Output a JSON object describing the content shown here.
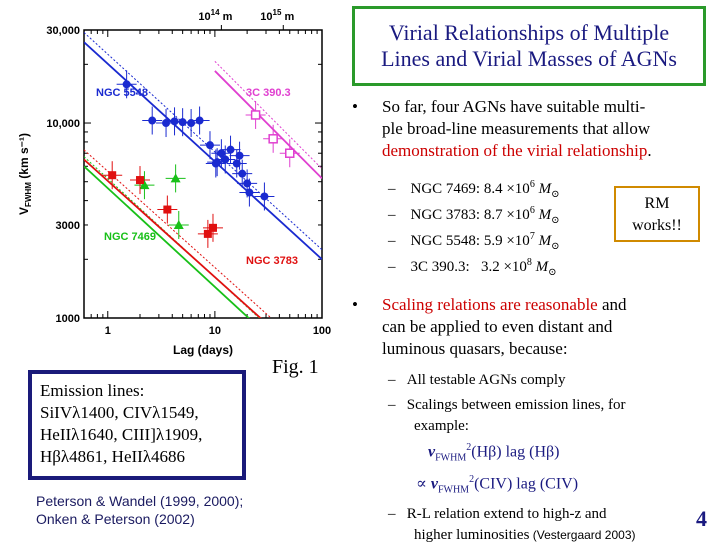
{
  "slide": {
    "title_line1": "Virial Relationships of Multiple",
    "title_line2": "Lines and Virial Masses of AGNs",
    "fig_label": "Fig. 1",
    "page_number": "4",
    "citation_line1": "Peterson & Wandel (1999, 2000);",
    "citation_line2": "Onken & Peterson (2002)",
    "emission_box": {
      "line1": "Emission lines:",
      "line2": "SiIVλ1400, CIVλ1549,",
      "line3": "HeIIλ1640, CIII]λ1909,",
      "line4": "Hβλ4861, HeIIλ4686"
    },
    "bullet1": {
      "marker": "•",
      "line1": "So far, four AGNs have suitable multi-",
      "line2": "ple broad-line measurements that allow",
      "line3_red": "demonstration of the virial relationship",
      "line3_end": ".",
      "items": [
        {
          "dash": "–",
          "name": "NGC 7469:",
          "value": "8.4 ×10",
          "exp": "6",
          "unit": "M"
        },
        {
          "dash": "–",
          "name": "NGC 3783:",
          "value": "8.7 ×10",
          "exp": "6",
          "unit": "M"
        },
        {
          "dash": "–",
          "name": "NGC 5548:",
          "value": "5.9 ×10",
          "exp": "7",
          "unit": "M"
        },
        {
          "dash": "–",
          "name": "3C 390.3:",
          "value": "3.2 ×10",
          "exp": "8",
          "unit": "M"
        }
      ],
      "sun_symbol": "⊙"
    },
    "rm_box": {
      "line1": "RM",
      "line2": "works!!"
    },
    "bullet2": {
      "marker": "•",
      "line1_red": "Scaling relations are reasonable",
      "line1_end": " and",
      "line2": "can be applied to even distant and",
      "line3": "luminous quasars, because:",
      "sub1": "All  testable AGNs comply",
      "sub2_line1": "Scalings between emission lines, for",
      "sub2_line2": "example:",
      "eq1_v": "v",
      "eq1_sub": "FWHM",
      "eq1_sup": "2",
      "eq1_rest": "(Hβ) lag (Hβ)",
      "eq2_prefix": "∝ ",
      "eq2_v": "v",
      "eq2_sub": "FWHM",
      "eq2_sup": "2",
      "eq2_rest": "(CIV) lag (CIV)",
      "sub3_line1": "R-L relation extend to high-z and",
      "sub3_line2": "higher luminosities",
      "sub3_cite": " (Vestergaard 2003)"
    }
  },
  "chart_data": {
    "type": "scatter",
    "xlabel": "Lag (days)",
    "ylabel": "V",
    "ylabel_sub": "FWHM",
    "ylabel_unit": " (km s⁻¹)",
    "x_scale": "log",
    "y_scale": "log",
    "xlim": [
      0.6,
      100
    ],
    "ylim": [
      1000,
      30000
    ],
    "x_ticks": [
      1,
      10,
      100
    ],
    "x_tick_labels": [
      "1",
      "10",
      "100"
    ],
    "y_ticks": [
      1000,
      3000,
      10000,
      30000
    ],
    "y_tick_labels": [
      "1000",
      "3000",
      "10,000",
      "30,000"
    ],
    "top_axis_ticks": [
      {
        "lag": 11.5,
        "label": "10",
        "sup": "14",
        "unit": " m"
      },
      {
        "lag": 43.5,
        "label": "10",
        "sup": "15",
        "unit": " m"
      }
    ],
    "series": [
      {
        "name": "NGC 5548",
        "color": "#1a2ad0",
        "marker": "circle-filled",
        "points": [
          {
            "x": 1.5,
            "y": 15800
          },
          {
            "x": 2.6,
            "y": 10300
          },
          {
            "x": 3.5,
            "y": 10000
          },
          {
            "x": 4.2,
            "y": 10200
          },
          {
            "x": 5.0,
            "y": 10100
          },
          {
            "x": 6.0,
            "y": 10000
          },
          {
            "x": 7.2,
            "y": 10300
          },
          {
            "x": 9.0,
            "y": 7700
          },
          {
            "x": 10.5,
            "y": 6300
          },
          {
            "x": 12.5,
            "y": 6500
          },
          {
            "x": 14,
            "y": 7300
          },
          {
            "x": 16,
            "y": 6200
          },
          {
            "x": 17,
            "y": 6800
          },
          {
            "x": 18,
            "y": 5500
          },
          {
            "x": 20,
            "y": 4900
          },
          {
            "x": 21,
            "y": 4400
          },
          {
            "x": 29,
            "y": 4200
          },
          {
            "x": 10.2,
            "y": 6200
          },
          {
            "x": 11.5,
            "y": 7000
          }
        ],
        "fit": {
          "x": [
            0.6,
            100
          ],
          "y": [
            26000,
            2000
          ]
        }
      },
      {
        "name": "3C 390.3",
        "color": "#e040d0",
        "marker": "square-open",
        "points": [
          {
            "x": 24,
            "y": 11000
          },
          {
            "x": 35,
            "y": 8300
          },
          {
            "x": 50,
            "y": 7000
          }
        ],
        "fit": {
          "x": [
            10,
            100
          ],
          "y": [
            18500,
            5200
          ]
        }
      },
      {
        "name": "NGC 7469",
        "color": "#18c018",
        "marker": "triangle-filled",
        "points": [
          {
            "x": 2.2,
            "y": 4800
          },
          {
            "x": 4.6,
            "y": 3000
          },
          {
            "x": 4.3,
            "y": 5200
          }
        ],
        "fit": {
          "x": [
            0.6,
            100
          ],
          "y": [
            6000,
            450
          ]
        }
      },
      {
        "name": "NGC 3783",
        "color": "#e01010",
        "marker": "square-filled",
        "points": [
          {
            "x": 1.1,
            "y": 5400
          },
          {
            "x": 2.0,
            "y": 5100
          },
          {
            "x": 3.6,
            "y": 3600
          },
          {
            "x": 8.6,
            "y": 2700
          },
          {
            "x": 9.6,
            "y": 2900
          }
        ],
        "fit": {
          "x": [
            0.6,
            100
          ],
          "y": [
            6500,
            520
          ]
        }
      }
    ],
    "series_labels": [
      {
        "text": "NGC 5548",
        "color": "#1a2ad0"
      },
      {
        "text": "3C 390.3",
        "color": "#e040d0"
      },
      {
        "text": "NGC 7469",
        "color": "#18c018"
      },
      {
        "text": "NGC 3783",
        "color": "#e01010"
      }
    ]
  }
}
